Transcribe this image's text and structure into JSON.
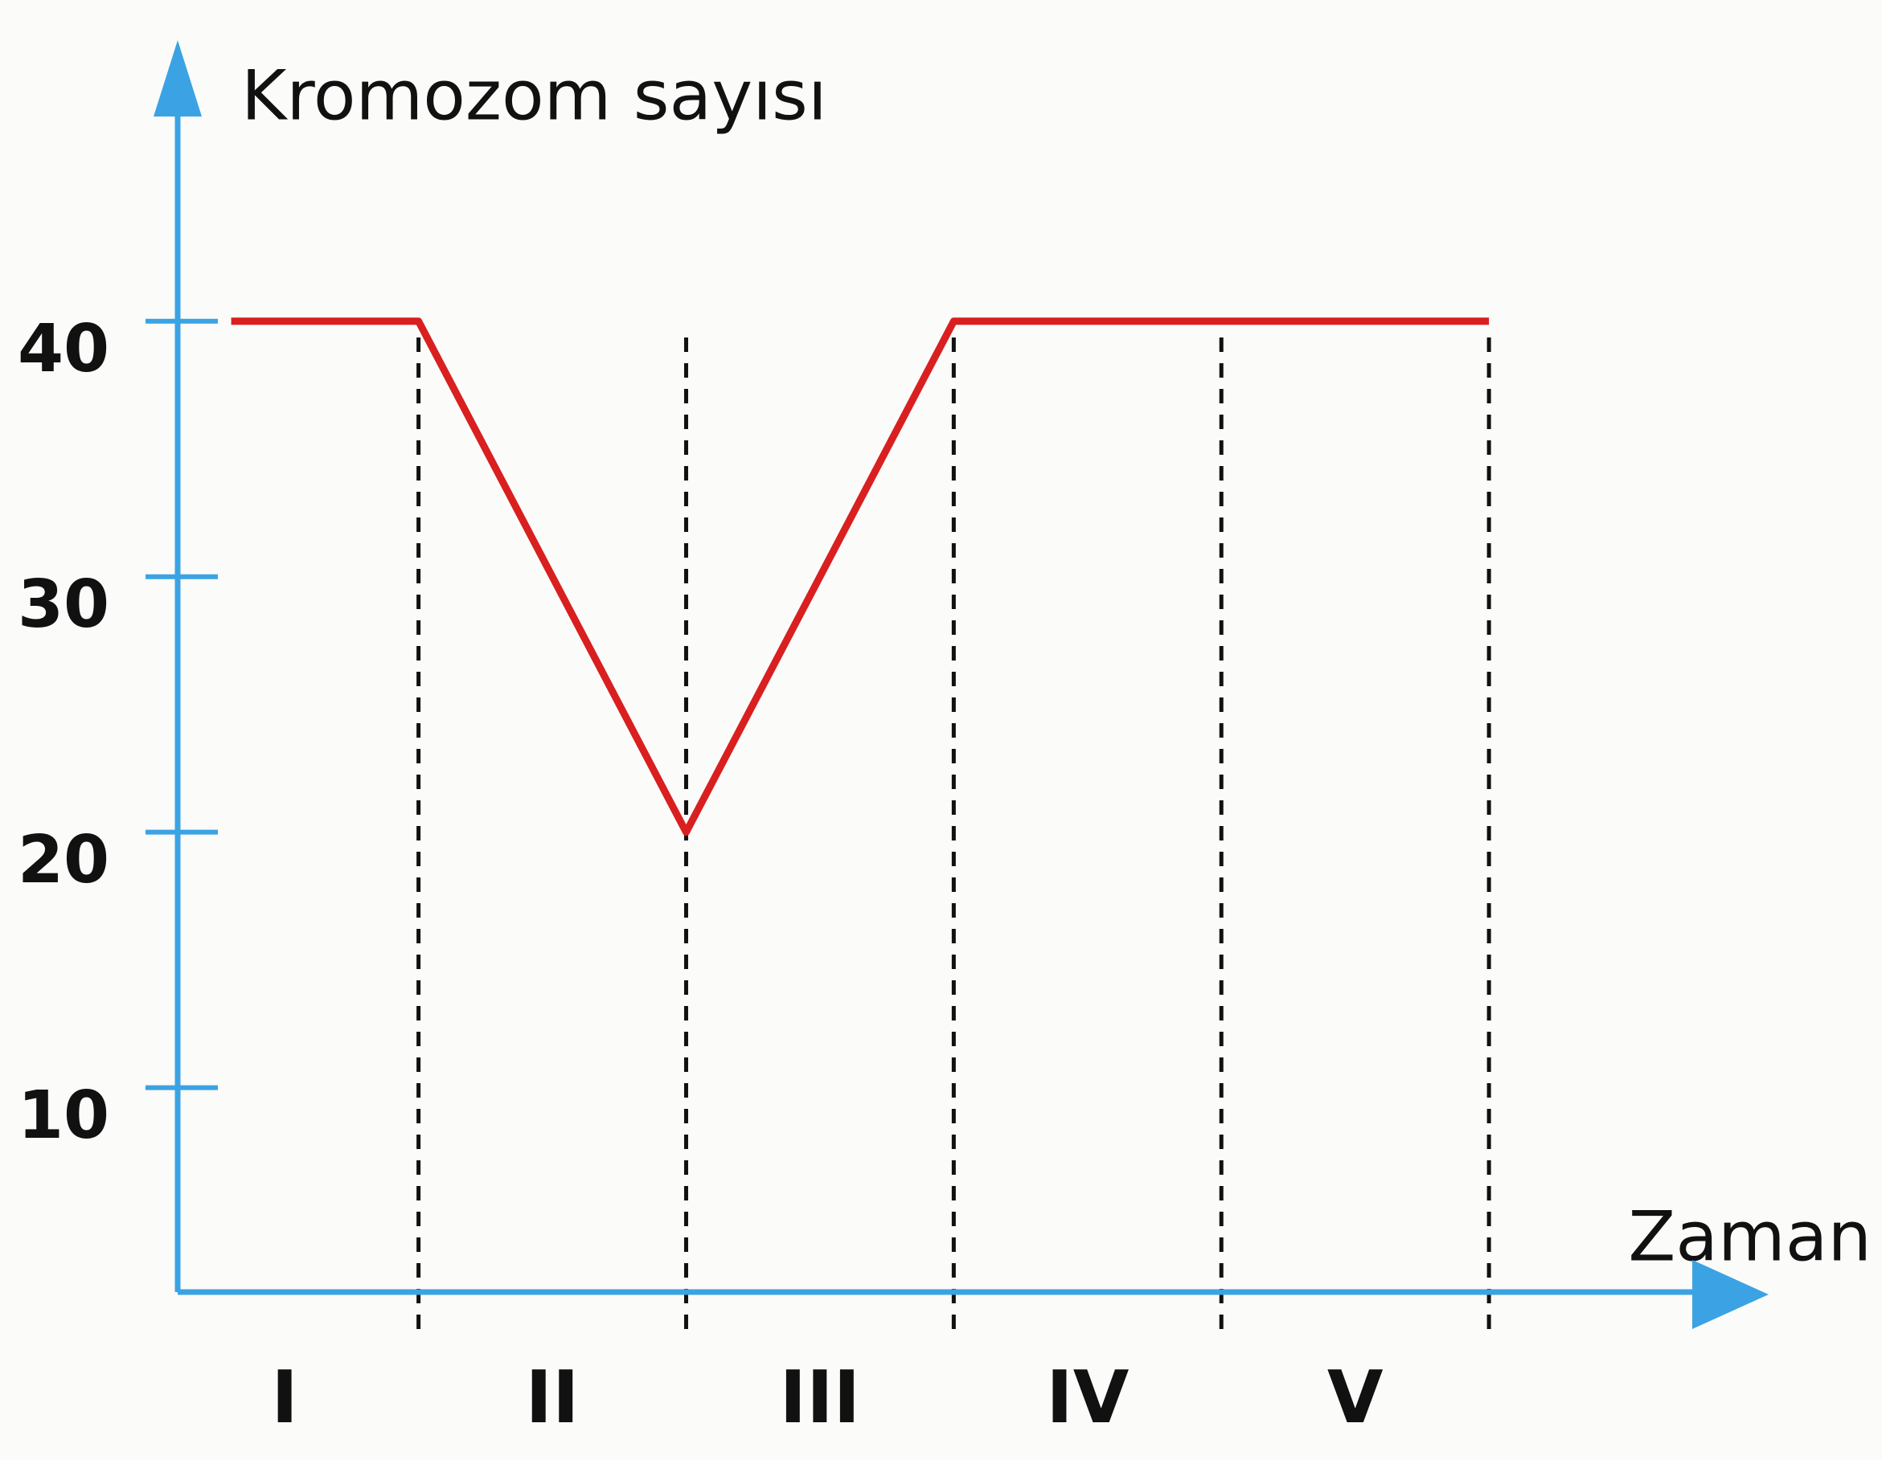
{
  "chart_data": {
    "type": "line",
    "y_label": "Kromozom sayısı",
    "x_label": "Zaman",
    "categories": [
      "I",
      "II",
      "III",
      "IV",
      "V"
    ],
    "x": [
      0.3,
      1,
      2,
      3,
      4,
      5
    ],
    "series": [
      {
        "color": "#d91f1f",
        "values": [
          40,
          40,
          20,
          40,
          40,
          40
        ]
      }
    ],
    "xlim": [
      0.1,
      6
    ],
    "ylim": [
      2,
      51
    ],
    "yticks": [
      10,
      20,
      30,
      40
    ],
    "axis_color": "#3ba3e3"
  }
}
